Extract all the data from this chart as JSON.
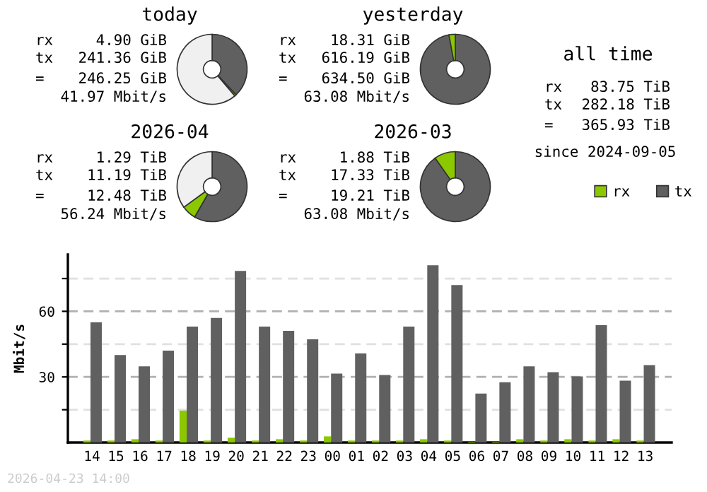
{
  "chart_data": [
    {
      "type": "donut",
      "title": "today",
      "categories": [
        null,
        null,
        null
      ],
      "values": [
        38.0,
        0.8,
        61.2
      ],
      "colors": [
        "#606060",
        "#8cc800",
        "#f0f0f0"
      ],
      "annotations": [
        "rx",
        "4.90 GiB",
        "tx",
        "241.36 GiB",
        "=",
        "246.25 GiB",
        "41.97 Mbit/s"
      ]
    },
    {
      "type": "donut",
      "title": "yesterday",
      "categories": [
        null,
        null
      ],
      "values": [
        97.1,
        2.9
      ],
      "colors": [
        "#606060",
        "#8cc800"
      ],
      "annotations": [
        "rx",
        "18.31 GiB",
        "tx",
        "616.19 GiB",
        "=",
        "634.50 GiB",
        "63.08 Mbit/s"
      ]
    },
    {
      "type": "donut",
      "title": "2026-04",
      "categories": [
        null,
        null,
        null
      ],
      "values": [
        58.3,
        6.7,
        35.0
      ],
      "colors": [
        "#606060",
        "#8cc800",
        "#f0f0f0"
      ],
      "annotations": [
        "rx",
        "1.29 TiB",
        "tx",
        "11.19 TiB",
        "=",
        "12.48 TiB",
        "56.24 Mbit/s"
      ]
    },
    {
      "type": "donut",
      "title": "2026-03",
      "categories": [
        null,
        null
      ],
      "values": [
        90.2,
        9.8
      ],
      "colors": [
        "#606060",
        "#8cc800"
      ],
      "annotations": [
        "rx",
        "1.88 TiB",
        "tx",
        "17.33 TiB",
        "=",
        "19.21 TiB",
        "63.08 Mbit/s"
      ]
    },
    {
      "type": "other",
      "title": "all time",
      "annotations": [
        "rx",
        "83.75 TiB",
        "tx",
        "282.18 TiB",
        "=",
        "365.93 TiB",
        "since 2024-09-05"
      ]
    },
    {
      "type": "bar",
      "categories": [
        "14",
        "15",
        "16",
        "17",
        "18",
        "19",
        "20",
        "21",
        "22",
        "23",
        "00",
        "01",
        "02",
        "03",
        "04",
        "05",
        "06",
        "07",
        "08",
        "09",
        "10",
        "11",
        "12",
        "13"
      ],
      "series": [
        {
          "name": "rx",
          "color": "#8cc800",
          "values": [
            0.9,
            0.9,
            1.5,
            0.9,
            14.6,
            0.9,
            2.2,
            0.9,
            1.5,
            0.9,
            2.8,
            0.9,
            0.9,
            0.9,
            1.5,
            0.9,
            0.3,
            0.3,
            1.5,
            0.9,
            1.5,
            0.9,
            1.5,
            0.9
          ]
        },
        {
          "name": "tx",
          "color": "#606060",
          "values": [
            55.0,
            40.0,
            34.8,
            42.0,
            53.0,
            57.0,
            78.5,
            53.0,
            51.1,
            47.2,
            31.5,
            40.7,
            30.9,
            53.0,
            81.1,
            72.0,
            22.4,
            27.6,
            34.8,
            32.2,
            30.2,
            53.7,
            28.3,
            35.4
          ]
        }
      ],
      "ylabel": "Mbit/s",
      "ylim": [
        0,
        86
      ],
      "yticks": [
        {
          "value": 15,
          "label": null
        },
        30,
        {
          "value": 45,
          "label": null
        },
        60,
        {
          "value": 75,
          "label": null
        }
      ],
      "grid": "y",
      "legend": "top right",
      "annotations": [
        "2026-04-23 14:00"
      ]
    }
  ]
}
